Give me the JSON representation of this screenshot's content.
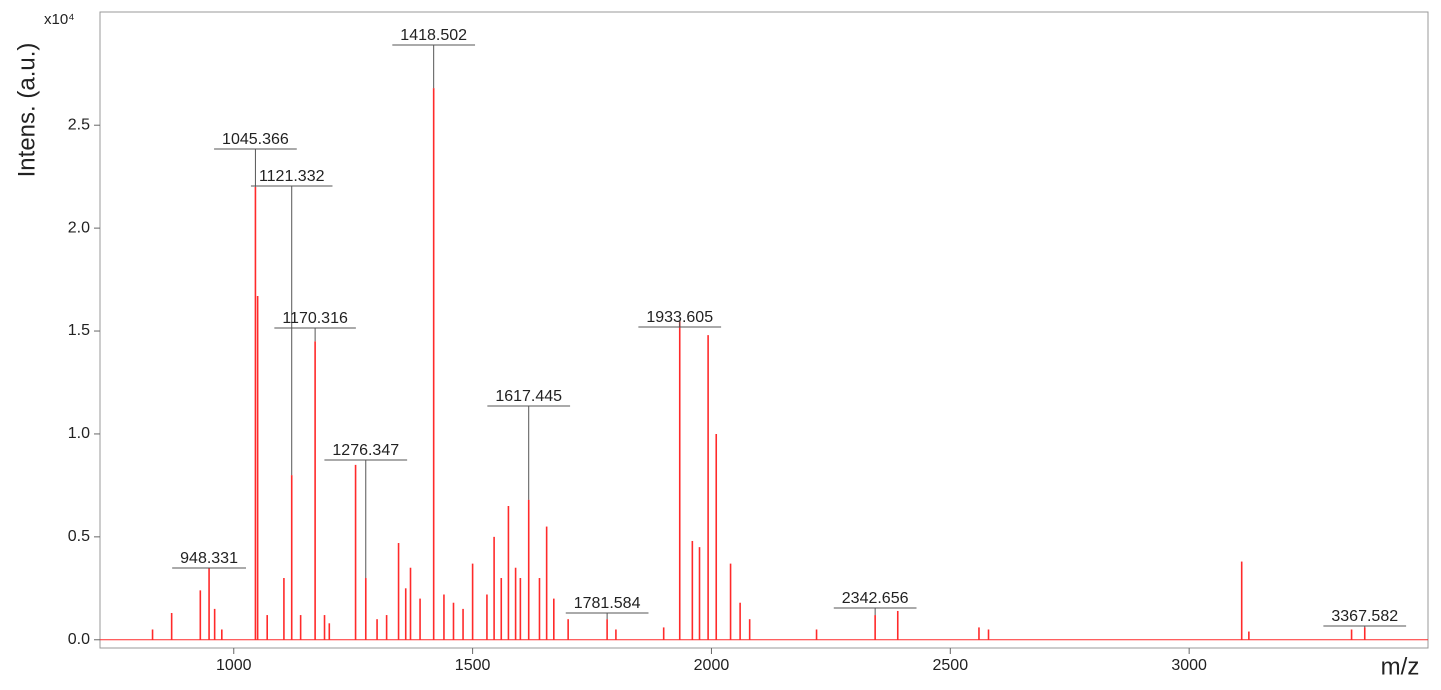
{
  "chart_data": {
    "type": "spectrum",
    "y_label": "Intens. (a.u.)",
    "x_label": "m/z",
    "y_multiplier": "x10⁴",
    "color": "#ff2a2a",
    "xlim": [
      720,
      3500
    ],
    "ylim": [
      -0.04,
      3.05
    ],
    "xticks": [
      1000,
      1500,
      2000,
      2500,
      3000
    ],
    "yticks": [
      {
        "value": 0,
        "label": "0.0"
      },
      0.5,
      {
        "value": 1,
        "label": "1.0"
      },
      1.5,
      {
        "value": 2,
        "label": "2.0"
      },
      2.5
    ],
    "peaks": {
      "x": [
        830,
        870,
        930,
        960,
        975,
        1050,
        1070,
        1105,
        1140,
        1190,
        1200,
        1255,
        1300,
        1320,
        1345,
        1360,
        1370,
        1390,
        1440,
        1460,
        1480,
        1500,
        1530,
        1545,
        1560,
        1575,
        1590,
        1600,
        1640,
        1655,
        1670,
        1700,
        1800,
        1900,
        1960,
        1975,
        1993,
        2010,
        2040,
        2060,
        2080,
        2220,
        2390,
        2560,
        2580,
        3110,
        3125,
        3340
      ],
      "values": [
        0.05,
        0.13,
        0.24,
        0.15,
        0.05,
        1.67,
        0.12,
        0.3,
        0.12,
        0.12,
        0.08,
        0.85,
        0.1,
        0.12,
        0.47,
        0.25,
        0.35,
        0.2,
        0.22,
        0.18,
        0.15,
        0.37,
        0.22,
        0.5,
        0.3,
        0.65,
        0.35,
        0.3,
        0.3,
        0.55,
        0.2,
        0.1,
        0.05,
        0.06,
        0.48,
        0.45,
        1.48,
        1.0,
        0.37,
        0.18,
        0.1,
        0.05,
        0.14,
        0.06,
        0.05,
        0.38,
        0.04,
        0.05
      ]
    },
    "labeled_peaks": {
      "x": [
        948.331,
        1045.366,
        1121.332,
        1170.316,
        1276.347,
        1418.502,
        1617.445,
        1781.584,
        1933.605,
        2342.656,
        3367.582
      ],
      "values": [
        0.35,
        2.2,
        0.8,
        1.45,
        0.3,
        2.68,
        0.68,
        0.1,
        1.55,
        0.12,
        0.06
      ]
    }
  }
}
